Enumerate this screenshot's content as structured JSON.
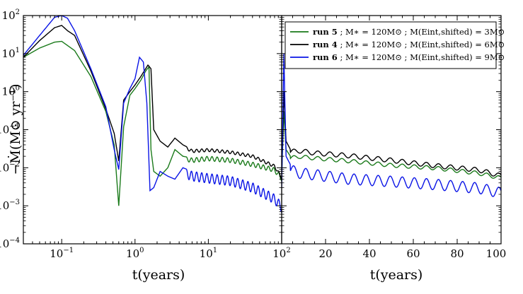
{
  "chart_data": [
    {
      "panel": "left",
      "type": "line",
      "xscale": "log",
      "yscale": "log",
      "xlim": [
        0.03,
        100
      ],
      "ylim": [
        0.0001,
        100
      ],
      "xlabel": "t(years)",
      "ylabel": "−Ṁ(M⊙ yr⁻¹)",
      "xticks": [
        {
          "value": 0.1,
          "base": "10",
          "exp": "−1"
        },
        {
          "value": 1,
          "base": "10",
          "exp": "0"
        },
        {
          "value": 10,
          "base": "10",
          "exp": "1"
        },
        {
          "value": 100,
          "base": "10",
          "exp": "2"
        }
      ],
      "yticks": [
        {
          "value": 0.0001,
          "base": "10",
          "exp": "−4"
        },
        {
          "value": 0.001,
          "base": "10",
          "exp": "−3"
        },
        {
          "value": 0.01,
          "base": "10",
          "exp": "−2"
        },
        {
          "value": 0.1,
          "base": "10",
          "exp": "−1"
        },
        {
          "value": 1,
          "base": "10",
          "exp": "0"
        },
        {
          "value": 10,
          "base": "10",
          "exp": "1"
        },
        {
          "value": 100,
          "base": "10",
          "exp": "2"
        }
      ],
      "series": [
        {
          "name": "run 5",
          "color": "#1a7a1a",
          "x": [
            0.03,
            0.05,
            0.08,
            0.1,
            0.15,
            0.25,
            0.4,
            0.52,
            0.6,
            0.7,
            0.85,
            1.0,
            1.2,
            1.4,
            1.55,
            1.65,
            1.8,
            2.2,
            2.8,
            3.5,
            4.5,
            6,
            10,
            20,
            40,
            80,
            100
          ],
          "y": [
            8,
            14,
            20,
            21,
            12,
            2.5,
            0.3,
            0.04,
            0.001,
            0.12,
            0.8,
            1.2,
            2.0,
            3.5,
            4.5,
            0.03,
            0.008,
            0.006,
            0.01,
            0.03,
            0.02,
            0.018,
            0.02,
            0.018,
            0.014,
            0.01,
            0.006
          ],
          "osc": {
            "from": 5,
            "to": 100,
            "amp_dex": 0.12,
            "period_dex": 0.07
          }
        },
        {
          "name": "run 4",
          "color": "#000000",
          "x": [
            0.03,
            0.05,
            0.08,
            0.1,
            0.12,
            0.15,
            0.25,
            0.4,
            0.52,
            0.6,
            0.7,
            0.85,
            1.0,
            1.2,
            1.5,
            1.65,
            1.8,
            2.2,
            2.8,
            3.5,
            4.5,
            6,
            10,
            20,
            40,
            80,
            100
          ],
          "y": [
            8,
            22,
            48,
            55,
            40,
            30,
            3.5,
            0.35,
            0.08,
            0.015,
            0.6,
            1.0,
            1.5,
            2.5,
            5.0,
            4.0,
            0.1,
            0.05,
            0.035,
            0.06,
            0.04,
            0.03,
            0.032,
            0.028,
            0.022,
            0.012,
            0.006
          ],
          "osc": {
            "from": 5,
            "to": 100,
            "amp_dex": 0.08,
            "period_dex": 0.07
          }
        },
        {
          "name": "run 6",
          "color": "#0a14e6",
          "x": [
            0.03,
            0.05,
            0.08,
            0.1,
            0.12,
            0.15,
            0.25,
            0.4,
            0.52,
            0.6,
            0.7,
            0.85,
            1.0,
            1.15,
            1.3,
            1.45,
            1.6,
            1.8,
            2.2,
            2.8,
            3.5,
            4.5,
            6,
            10,
            20,
            40,
            80,
            100
          ],
          "y": [
            9,
            30,
            90,
            100,
            85,
            40,
            4,
            0.4,
            0.03,
            0.009,
            0.5,
            1.2,
            2.2,
            8,
            6,
            0.5,
            0.0025,
            0.003,
            0.008,
            0.006,
            0.005,
            0.01,
            0.008,
            0.007,
            0.006,
            0.004,
            0.002,
            0.0012
          ],
          "osc": {
            "from": 5,
            "to": 100,
            "amp_dex": 0.25,
            "period_dex": 0.07
          }
        }
      ]
    },
    {
      "panel": "right",
      "type": "line",
      "xscale": "linear",
      "yscale": "log",
      "xlim": [
        0,
        100
      ],
      "ylim": [
        0.0001,
        100
      ],
      "xlabel": "t(years)",
      "xticks": [
        20,
        40,
        60,
        80,
        100
      ],
      "legend": {
        "placement": "top-right",
        "entries": [
          {
            "run": "run 5",
            "text": " ; M∗ = 120M⊙ ; M(Eint,shifted) = 3M⊙",
            "color": "#1a7a1a"
          },
          {
            "run": "run 4",
            "text": " ; M∗ = 120M⊙ ; M(Eint,shifted) = 6M⊙",
            "color": "#000000"
          },
          {
            "run": "run 6",
            "text": " ; M∗ = 120M⊙ ; M(Eint,shifted) = 9M⊙",
            "color": "#0a14e6"
          }
        ]
      },
      "series": [
        {
          "name": "run 5",
          "color": "#1a7a1a",
          "x": [
            0,
            1,
            2,
            4,
            8,
            15,
            30,
            50,
            70,
            90,
            100
          ],
          "y": [
            0.006,
            0.3,
            0.03,
            0.02,
            0.022,
            0.02,
            0.017,
            0.013,
            0.011,
            0.008,
            0.006
          ],
          "osc": {
            "from": 4,
            "to": 100,
            "amp_dex": 0.1,
            "period": 5.5
          }
        },
        {
          "name": "run 4",
          "color": "#000000",
          "x": [
            0,
            1,
            2,
            4,
            8,
            15,
            30,
            50,
            70,
            90,
            100
          ],
          "y": [
            0.006,
            1.0,
            0.05,
            0.03,
            0.032,
            0.028,
            0.024,
            0.018,
            0.013,
            0.01,
            0.007
          ],
          "osc": {
            "from": 4,
            "to": 100,
            "amp_dex": 0.12,
            "period": 5.5
          }
        },
        {
          "name": "run 6",
          "color": "#0a14e6",
          "x": [
            0,
            1,
            2,
            4,
            8,
            15,
            30,
            50,
            70,
            90,
            100
          ],
          "y": [
            0.003,
            10,
            0.02,
            0.012,
            0.01,
            0.009,
            0.007,
            0.006,
            0.005,
            0.004,
            0.003
          ],
          "osc": {
            "from": 4,
            "to": 100,
            "amp_dex": 0.28,
            "period": 5.5
          }
        }
      ]
    }
  ]
}
